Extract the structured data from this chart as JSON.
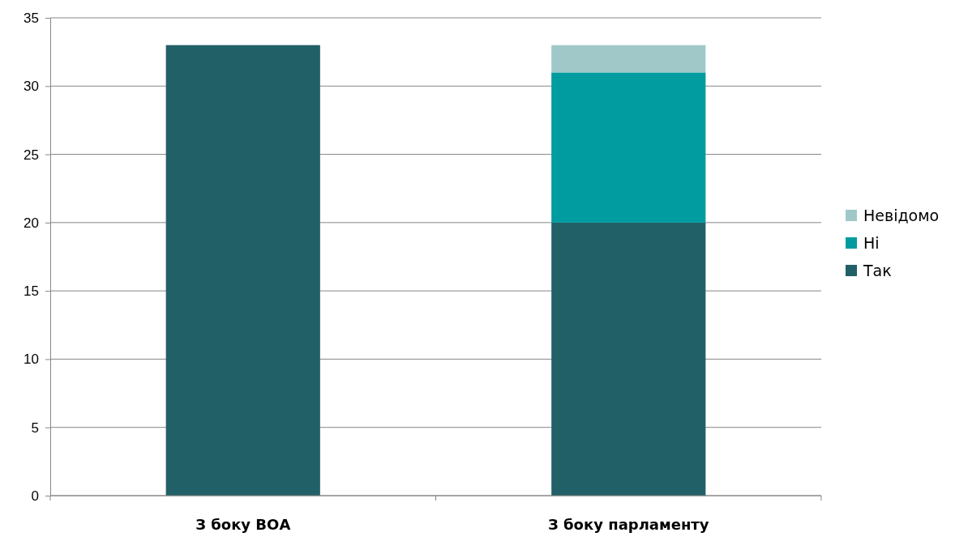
{
  "chart_data": {
    "type": "bar",
    "stacked": true,
    "categories": [
      "З боку ВОА",
      "З боку парламенту"
    ],
    "series": [
      {
        "name": "Так",
        "color": "#226068",
        "values": [
          33,
          20
        ]
      },
      {
        "name": "Ні",
        "color": "#009ca0",
        "values": [
          0,
          11
        ]
      },
      {
        "name": "Невідомо",
        "color": "#a0c8c8",
        "values": [
          0,
          2
        ]
      }
    ],
    "ylim": [
      0,
      35
    ],
    "yticks": [
      0,
      5,
      10,
      15,
      20,
      25,
      30,
      35
    ],
    "grid": "y",
    "legend": "right"
  }
}
